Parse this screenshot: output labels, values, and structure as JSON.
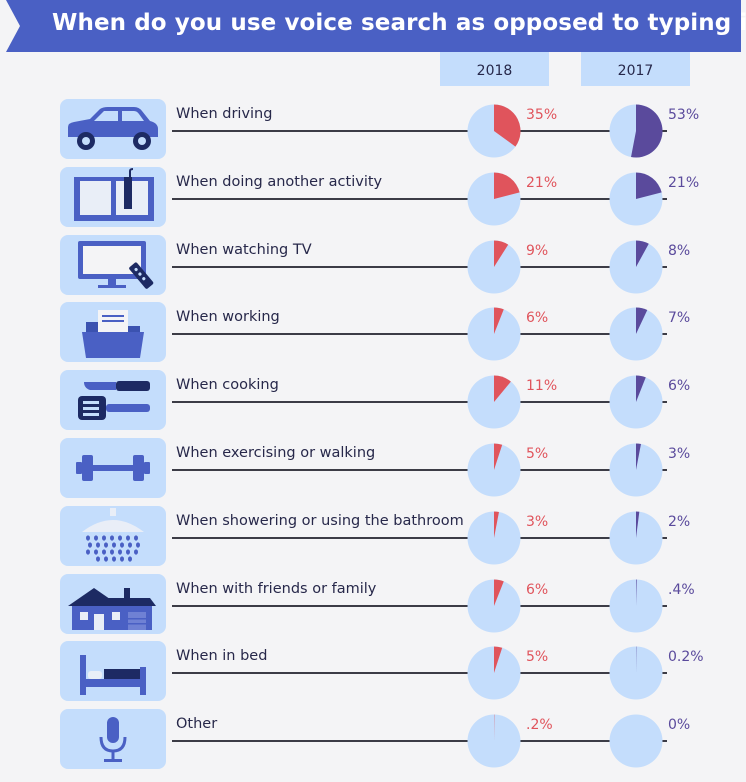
{
  "title": "When do you use voice search as opposed to typing in?",
  "colors": {
    "banner": "#4a60c4",
    "pie_background": "#c4ddfc",
    "slice_2018": "#e0545c",
    "slice_2017": "#5a4a9c",
    "icon_fill": "#4a60c4"
  },
  "columns": {
    "y2018": "2018",
    "y2017": "2017"
  },
  "chart_data": {
    "type": "pie",
    "title": "When do you use voice search as opposed to typing in?",
    "series_names": [
      "2018",
      "2017"
    ],
    "categories": [
      "When driving",
      "When doing another activity",
      "When watching TV",
      "When working",
      "When cooking",
      "When exercising or walking",
      "When showering or using the bathroom",
      "When with friends or family",
      "When in bed",
      "Other"
    ],
    "values_2018": [
      35,
      21,
      9,
      6,
      11,
      5,
      3,
      6,
      5,
      0.2
    ],
    "values_2017": [
      53,
      21,
      8,
      7,
      6,
      3,
      2,
      0.4,
      0.2,
      0
    ],
    "labels_2018": [
      "35%",
      "21%",
      "9%",
      "6%",
      "11%",
      "5%",
      "3%",
      "6%",
      "5%",
      ".2%"
    ],
    "labels_2017": [
      "53%",
      "21%",
      "8%",
      "7%",
      "6%",
      "3%",
      "2%",
      ".4%",
      "0.2%",
      "0%"
    ]
  },
  "rows": [
    {
      "icon": "car-icon"
    },
    {
      "icon": "book-icon"
    },
    {
      "icon": "tv-icon"
    },
    {
      "icon": "folder-icon"
    },
    {
      "icon": "knife-icon"
    },
    {
      "icon": "dumbbell-icon"
    },
    {
      "icon": "shower-icon"
    },
    {
      "icon": "house-icon"
    },
    {
      "icon": "bed-icon"
    },
    {
      "icon": "microphone-icon"
    }
  ]
}
